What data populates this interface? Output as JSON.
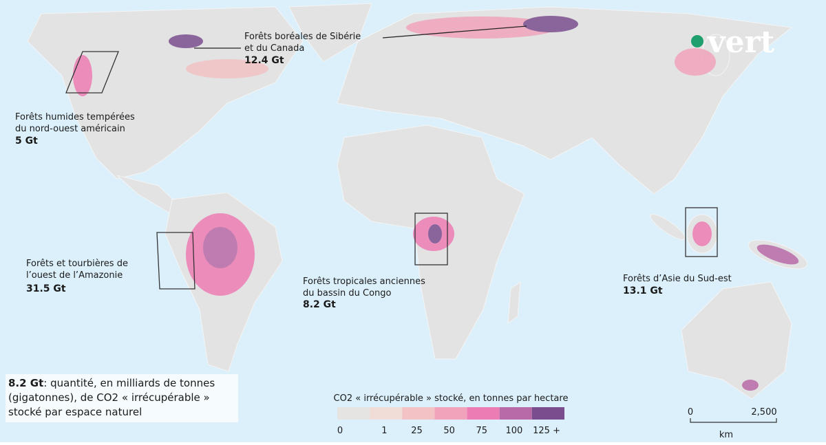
{
  "logo": "vert",
  "regions": [
    {
      "name_lines": [
        "Forêts boréales de Sibérie",
        "et du Canada"
      ],
      "amount": "12.4 Gt"
    },
    {
      "name_lines": [
        "Forêts humides tempérées",
        "du nord-ouest américain"
      ],
      "amount": "5 Gt"
    },
    {
      "name_lines": [
        "Forêts et tourbières de",
        "l’ouest de l’Amazonie"
      ],
      "amount": "31.5 Gt"
    },
    {
      "name_lines": [
        "Forêts tropicales anciennes",
        "du bassin du Congo"
      ],
      "amount": "8.2 Gt"
    },
    {
      "name_lines": [
        "Forêts d’Asie du Sud-est"
      ],
      "amount": "13.1 Gt"
    }
  ],
  "note": {
    "bold": "8.2 Gt",
    "lines": [
      ": quantité, en milliards de tonnes",
      "(gigatonnes), de CO2 « irrécupérable »",
      "stocké par espace naturel"
    ]
  },
  "legend": {
    "title": "CO2 « irrécupérable » stocké, en tonnes par hectare",
    "items": [
      {
        "label": "0",
        "color": "#e6e3e3"
      },
      {
        "label": "1",
        "color": "#f1ddd8"
      },
      {
        "label": "25",
        "color": "#f2c2c5"
      },
      {
        "label": "50",
        "color": "#f0a3ba"
      },
      {
        "label": "75",
        "color": "#ec7db4"
      },
      {
        "label": "100",
        "color": "#b86aa8"
      },
      {
        "label": "125 +",
        "color": "#7a4e8e"
      }
    ]
  },
  "scale_bar": {
    "start": "0",
    "end": "2,500",
    "unit": "km"
  }
}
